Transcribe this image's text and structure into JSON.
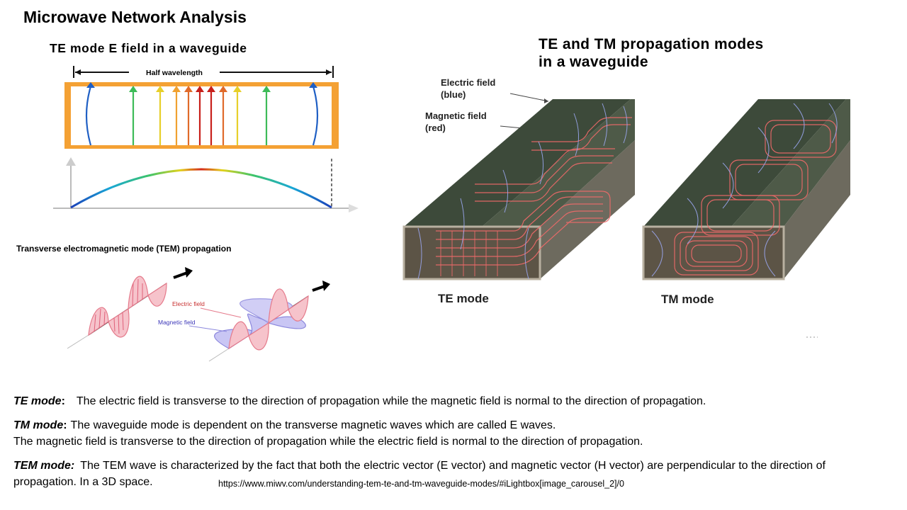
{
  "slide_title": "Microwave Network Analysis",
  "te_e_field": {
    "title": "TE mode E field in a waveguide",
    "half_wavelength": "Half wavelength"
  },
  "te_tm_modes": {
    "title_line1": "TE and TM propagation modes",
    "title_line2": "in a waveguide",
    "electric_label_1": "Electric field",
    "electric_label_2": "(blue)",
    "magnetic_label_1": "Magnetic field",
    "magnetic_label_2": "(red)",
    "te_label": "TE mode",
    "tm_label": "TM mode",
    "colors": {
      "electric": "#3a5bd9",
      "magnetic": "#e02020",
      "wall": "#3d4a3a"
    }
  },
  "tem": {
    "title": "Transverse electromagnetic mode (TEM) propagation",
    "electric_label": "Electric field",
    "magnetic_label": "Magnetic field",
    "colors": {
      "electric": "#f4a6b0",
      "magnetic": "#a9a6ee"
    }
  },
  "descriptions": {
    "te_term": "TE mode",
    "te_colon": ":",
    "te_text": "The electric field is transverse to the direction of propagation while the magnetic field is normal to the direction of propagation.",
    "tm_term": "TM mode",
    "tm_colon": ":",
    "tm_text1": "The waveguide mode is dependent on the transverse magnetic waves which are called E waves.",
    "tm_text2": "The magnetic field is transverse to the direction of propagation while the electric field is normal to the direction of propagation.",
    "tem_term": "TEM mode:",
    "tem_text1": "The TEM wave is characterized by the fact that both the electric vector (E vector) and magnetic vector (H vector) are perpendicular to the direction of",
    "tem_text2": "propagation.  In a 3D space."
  },
  "source_url": "https://www.miwv.com/understanding-tem-te-and-tm-waveguide-modes/#iLightbox[image_carousel_2]/0"
}
